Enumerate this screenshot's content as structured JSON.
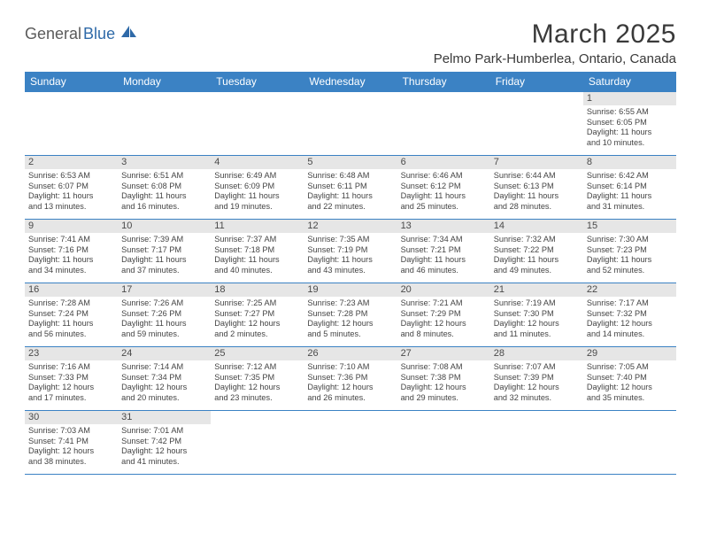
{
  "brand": {
    "part1": "General",
    "part2": "Blue"
  },
  "title": "March 2025",
  "location": "Pelmo Park-Humberlea, Ontario, Canada",
  "colors": {
    "header_bg": "#3b82c4",
    "header_text": "#ffffff",
    "daynum_bg": "#e6e6e6",
    "text": "#444444",
    "border": "#3b82c4",
    "brand_gray": "#5b5b5b",
    "brand_blue": "#2f6aa8",
    "background": "#ffffff"
  },
  "typography": {
    "title_fontsize": 30,
    "location_fontsize": 15,
    "dayheader_fontsize": 12,
    "daynum_fontsize": 11,
    "body_fontsize": 9.2,
    "font_family": "Arial"
  },
  "day_headers": [
    "Sunday",
    "Monday",
    "Tuesday",
    "Wednesday",
    "Thursday",
    "Friday",
    "Saturday"
  ],
  "weeks": [
    [
      {
        "blank": true
      },
      {
        "blank": true
      },
      {
        "blank": true
      },
      {
        "blank": true
      },
      {
        "blank": true
      },
      {
        "blank": true
      },
      {
        "day": "1",
        "sunrise": "Sunrise: 6:55 AM",
        "sunset": "Sunset: 6:05 PM",
        "dl1": "Daylight: 11 hours",
        "dl2": "and 10 minutes."
      }
    ],
    [
      {
        "day": "2",
        "sunrise": "Sunrise: 6:53 AM",
        "sunset": "Sunset: 6:07 PM",
        "dl1": "Daylight: 11 hours",
        "dl2": "and 13 minutes."
      },
      {
        "day": "3",
        "sunrise": "Sunrise: 6:51 AM",
        "sunset": "Sunset: 6:08 PM",
        "dl1": "Daylight: 11 hours",
        "dl2": "and 16 minutes."
      },
      {
        "day": "4",
        "sunrise": "Sunrise: 6:49 AM",
        "sunset": "Sunset: 6:09 PM",
        "dl1": "Daylight: 11 hours",
        "dl2": "and 19 minutes."
      },
      {
        "day": "5",
        "sunrise": "Sunrise: 6:48 AM",
        "sunset": "Sunset: 6:11 PM",
        "dl1": "Daylight: 11 hours",
        "dl2": "and 22 minutes."
      },
      {
        "day": "6",
        "sunrise": "Sunrise: 6:46 AM",
        "sunset": "Sunset: 6:12 PM",
        "dl1": "Daylight: 11 hours",
        "dl2": "and 25 minutes."
      },
      {
        "day": "7",
        "sunrise": "Sunrise: 6:44 AM",
        "sunset": "Sunset: 6:13 PM",
        "dl1": "Daylight: 11 hours",
        "dl2": "and 28 minutes."
      },
      {
        "day": "8",
        "sunrise": "Sunrise: 6:42 AM",
        "sunset": "Sunset: 6:14 PM",
        "dl1": "Daylight: 11 hours",
        "dl2": "and 31 minutes."
      }
    ],
    [
      {
        "day": "9",
        "sunrise": "Sunrise: 7:41 AM",
        "sunset": "Sunset: 7:16 PM",
        "dl1": "Daylight: 11 hours",
        "dl2": "and 34 minutes."
      },
      {
        "day": "10",
        "sunrise": "Sunrise: 7:39 AM",
        "sunset": "Sunset: 7:17 PM",
        "dl1": "Daylight: 11 hours",
        "dl2": "and 37 minutes."
      },
      {
        "day": "11",
        "sunrise": "Sunrise: 7:37 AM",
        "sunset": "Sunset: 7:18 PM",
        "dl1": "Daylight: 11 hours",
        "dl2": "and 40 minutes."
      },
      {
        "day": "12",
        "sunrise": "Sunrise: 7:35 AM",
        "sunset": "Sunset: 7:19 PM",
        "dl1": "Daylight: 11 hours",
        "dl2": "and 43 minutes."
      },
      {
        "day": "13",
        "sunrise": "Sunrise: 7:34 AM",
        "sunset": "Sunset: 7:21 PM",
        "dl1": "Daylight: 11 hours",
        "dl2": "and 46 minutes."
      },
      {
        "day": "14",
        "sunrise": "Sunrise: 7:32 AM",
        "sunset": "Sunset: 7:22 PM",
        "dl1": "Daylight: 11 hours",
        "dl2": "and 49 minutes."
      },
      {
        "day": "15",
        "sunrise": "Sunrise: 7:30 AM",
        "sunset": "Sunset: 7:23 PM",
        "dl1": "Daylight: 11 hours",
        "dl2": "and 52 minutes."
      }
    ],
    [
      {
        "day": "16",
        "sunrise": "Sunrise: 7:28 AM",
        "sunset": "Sunset: 7:24 PM",
        "dl1": "Daylight: 11 hours",
        "dl2": "and 56 minutes."
      },
      {
        "day": "17",
        "sunrise": "Sunrise: 7:26 AM",
        "sunset": "Sunset: 7:26 PM",
        "dl1": "Daylight: 11 hours",
        "dl2": "and 59 minutes."
      },
      {
        "day": "18",
        "sunrise": "Sunrise: 7:25 AM",
        "sunset": "Sunset: 7:27 PM",
        "dl1": "Daylight: 12 hours",
        "dl2": "and 2 minutes."
      },
      {
        "day": "19",
        "sunrise": "Sunrise: 7:23 AM",
        "sunset": "Sunset: 7:28 PM",
        "dl1": "Daylight: 12 hours",
        "dl2": "and 5 minutes."
      },
      {
        "day": "20",
        "sunrise": "Sunrise: 7:21 AM",
        "sunset": "Sunset: 7:29 PM",
        "dl1": "Daylight: 12 hours",
        "dl2": "and 8 minutes."
      },
      {
        "day": "21",
        "sunrise": "Sunrise: 7:19 AM",
        "sunset": "Sunset: 7:30 PM",
        "dl1": "Daylight: 12 hours",
        "dl2": "and 11 minutes."
      },
      {
        "day": "22",
        "sunrise": "Sunrise: 7:17 AM",
        "sunset": "Sunset: 7:32 PM",
        "dl1": "Daylight: 12 hours",
        "dl2": "and 14 minutes."
      }
    ],
    [
      {
        "day": "23",
        "sunrise": "Sunrise: 7:16 AM",
        "sunset": "Sunset: 7:33 PM",
        "dl1": "Daylight: 12 hours",
        "dl2": "and 17 minutes."
      },
      {
        "day": "24",
        "sunrise": "Sunrise: 7:14 AM",
        "sunset": "Sunset: 7:34 PM",
        "dl1": "Daylight: 12 hours",
        "dl2": "and 20 minutes."
      },
      {
        "day": "25",
        "sunrise": "Sunrise: 7:12 AM",
        "sunset": "Sunset: 7:35 PM",
        "dl1": "Daylight: 12 hours",
        "dl2": "and 23 minutes."
      },
      {
        "day": "26",
        "sunrise": "Sunrise: 7:10 AM",
        "sunset": "Sunset: 7:36 PM",
        "dl1": "Daylight: 12 hours",
        "dl2": "and 26 minutes."
      },
      {
        "day": "27",
        "sunrise": "Sunrise: 7:08 AM",
        "sunset": "Sunset: 7:38 PM",
        "dl1": "Daylight: 12 hours",
        "dl2": "and 29 minutes."
      },
      {
        "day": "28",
        "sunrise": "Sunrise: 7:07 AM",
        "sunset": "Sunset: 7:39 PM",
        "dl1": "Daylight: 12 hours",
        "dl2": "and 32 minutes."
      },
      {
        "day": "29",
        "sunrise": "Sunrise: 7:05 AM",
        "sunset": "Sunset: 7:40 PM",
        "dl1": "Daylight: 12 hours",
        "dl2": "and 35 minutes."
      }
    ],
    [
      {
        "day": "30",
        "sunrise": "Sunrise: 7:03 AM",
        "sunset": "Sunset: 7:41 PM",
        "dl1": "Daylight: 12 hours",
        "dl2": "and 38 minutes."
      },
      {
        "day": "31",
        "sunrise": "Sunrise: 7:01 AM",
        "sunset": "Sunset: 7:42 PM",
        "dl1": "Daylight: 12 hours",
        "dl2": "and 41 minutes."
      },
      {
        "blank": true
      },
      {
        "blank": true
      },
      {
        "blank": true
      },
      {
        "blank": true
      },
      {
        "blank": true
      }
    ]
  ]
}
